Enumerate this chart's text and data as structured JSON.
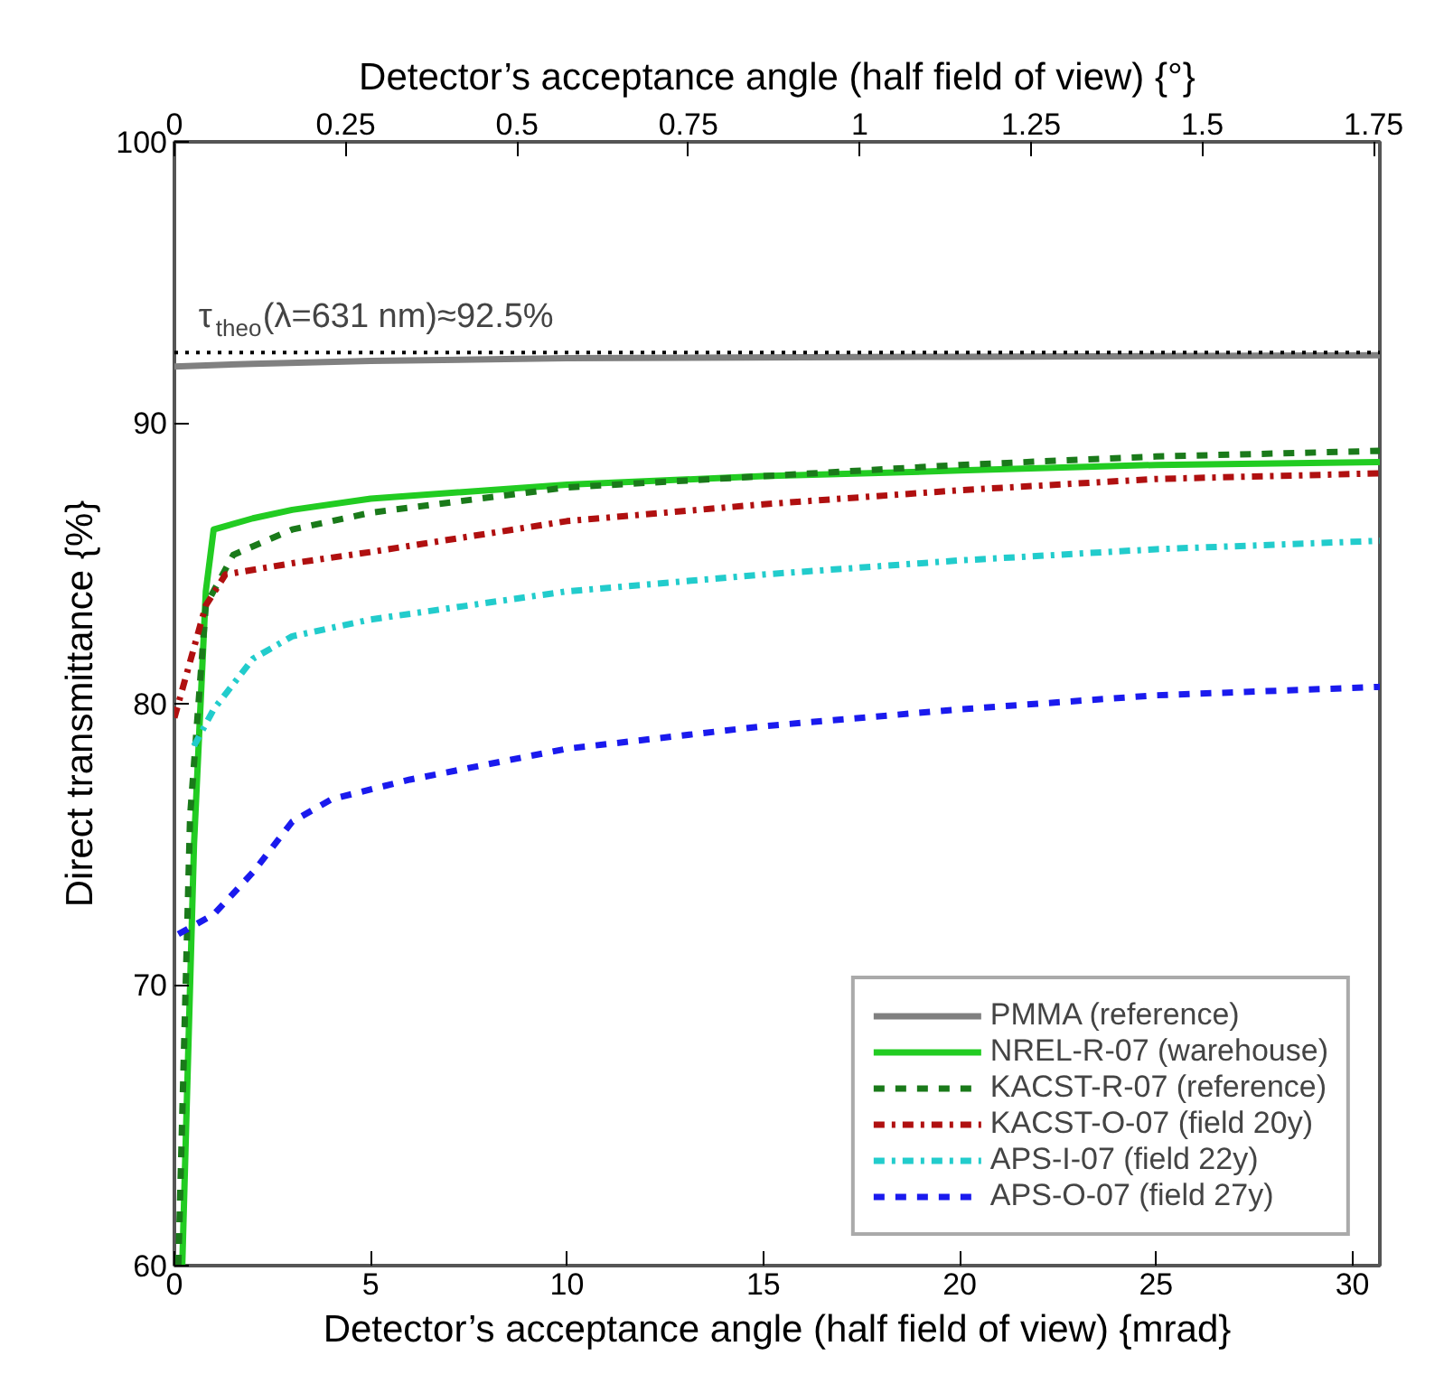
{
  "chart_data": {
    "type": "line",
    "xlabel": "Detector’s acceptance angle (half field of view) {mrad}",
    "x2label": "Detector’s acceptance angle (half field of view) {°}",
    "ylabel": "Direct transmittance {%}",
    "xlim": [
      0,
      30.7
    ],
    "xticks": [
      0,
      5,
      10,
      15,
      20,
      25,
      30
    ],
    "x2lim": [
      0,
      1.759
    ],
    "x2ticks": [
      0,
      0.25,
      0.5,
      0.75,
      1,
      1.25,
      1.5,
      1.75
    ],
    "ylim": [
      60,
      100
    ],
    "yticks": [
      60,
      70,
      80,
      90,
      100
    ],
    "legend": "bottom right",
    "grid": false,
    "ref_lines": [
      {
        "axis": "y",
        "value": 92.5,
        "label": "τ$_{theo}$(λ=631 nm)≈92.5%",
        "color": "#000000",
        "line_style": "dotted"
      }
    ],
    "series": [
      {
        "name": "PMMA (reference)",
        "color": "#808080",
        "line_style": "solid",
        "x": [
          0,
          2,
          5,
          10,
          20,
          30.7
        ],
        "values": [
          92.0,
          92.1,
          92.2,
          92.3,
          92.35,
          92.4
        ]
      },
      {
        "name": "NREL-R-07 (warehouse)",
        "color": "#22cc22",
        "line_style": "solid",
        "x": [
          0.2,
          0.5,
          0.8,
          1.0,
          2,
          3,
          5,
          10,
          15,
          20,
          25,
          30.7
        ],
        "values": [
          60,
          75,
          84,
          86.2,
          86.6,
          86.9,
          87.3,
          87.8,
          88.1,
          88.3,
          88.5,
          88.6
        ]
      },
      {
        "name": "KACST-R-07 (reference)",
        "color": "#1a7a1a",
        "line_style": "dashed",
        "x": [
          0.1,
          0.4,
          0.8,
          1.5,
          3,
          5,
          10,
          15,
          20,
          25,
          30.7
        ],
        "values": [
          60,
          76,
          83.5,
          85.3,
          86.2,
          86.8,
          87.7,
          88.1,
          88.5,
          88.8,
          89.0
        ]
      },
      {
        "name": "KACST-O-07 (field 20y)",
        "color": "#b01010",
        "line_style": "dashdot",
        "x": [
          0,
          0.4,
          0.8,
          1.3,
          3,
          5,
          10,
          15,
          20,
          25,
          30.7
        ],
        "values": [
          79.5,
          81.5,
          83.5,
          84.6,
          85.0,
          85.4,
          86.5,
          87.1,
          87.6,
          88.0,
          88.2
        ]
      },
      {
        "name": "APS-I-07 (field 22y)",
        "color": "#22cccc",
        "line_style": "dashdot",
        "x": [
          0.5,
          1,
          2,
          3,
          5,
          10,
          15,
          20,
          25,
          30.7
        ],
        "values": [
          78.5,
          79.8,
          81.6,
          82.4,
          83.0,
          84.0,
          84.6,
          85.1,
          85.5,
          85.8
        ]
      },
      {
        "name": "APS-O-07 (field 27y)",
        "color": "#1a1aee",
        "line_style": "dashed",
        "x": [
          0.1,
          1,
          2,
          3,
          4,
          6,
          10,
          15,
          20,
          25,
          30.7
        ],
        "values": [
          71.8,
          72.5,
          74.0,
          75.8,
          76.6,
          77.3,
          78.4,
          79.2,
          79.8,
          80.3,
          80.6
        ]
      }
    ]
  }
}
